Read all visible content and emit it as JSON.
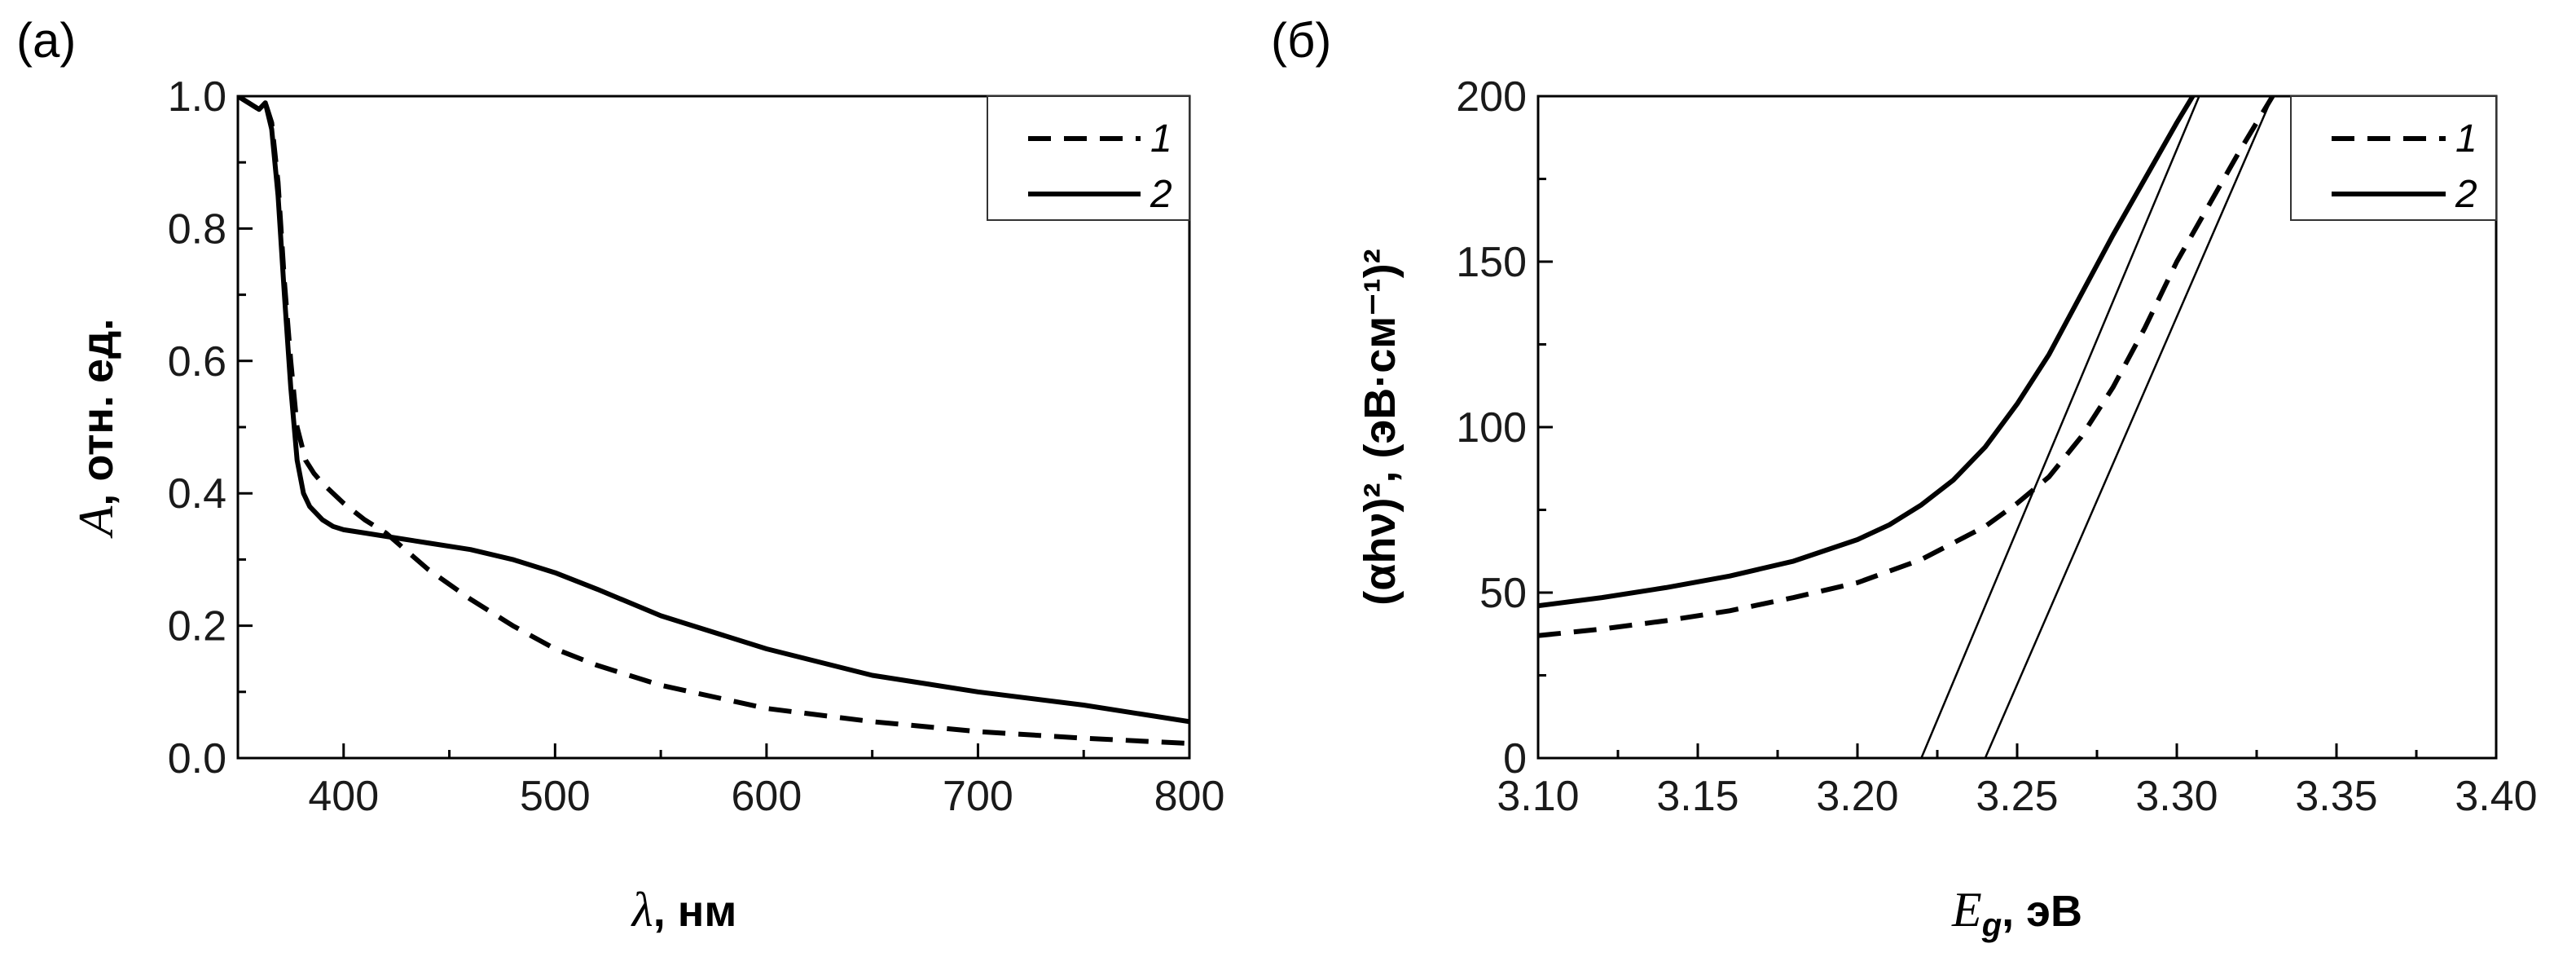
{
  "chart_data": [
    {
      "type": "line",
      "panel_label": "(a)",
      "xlabel_symbol": "λ",
      "xlabel_rest": ", нм",
      "ylabel_symbol": "A",
      "ylabel_rest": ", отн. ед.",
      "xlim": [
        350,
        800
      ],
      "ylim": [
        0,
        1.0
      ],
      "x_ticks": [
        400,
        500,
        600,
        700,
        800
      ],
      "y_ticks": [
        0.0,
        0.2,
        0.4,
        0.6,
        0.8,
        1.0
      ],
      "x_tick_labels": [
        "400",
        "500",
        "600",
        "700",
        "800"
      ],
      "y_tick_labels": [
        "0.0",
        "0.2",
        "0.4",
        "0.6",
        "0.8",
        "1.0"
      ],
      "legend_position": "top-right",
      "series": [
        {
          "name": "1",
          "style": "dashed",
          "x": [
            350,
            355,
            360,
            363,
            366,
            369,
            372,
            375,
            378,
            382,
            386,
            390,
            395,
            400,
            410,
            420,
            440,
            460,
            480,
            500,
            520,
            550,
            600,
            650,
            700,
            750,
            800
          ],
          "y": [
            1.0,
            0.99,
            0.98,
            0.99,
            0.96,
            0.87,
            0.72,
            0.6,
            0.5,
            0.45,
            0.43,
            0.415,
            0.4,
            0.385,
            0.36,
            0.34,
            0.285,
            0.24,
            0.2,
            0.165,
            0.14,
            0.11,
            0.075,
            0.055,
            0.04,
            0.03,
            0.022
          ]
        },
        {
          "name": "2",
          "style": "solid",
          "x": [
            350,
            355,
            360,
            363,
            366,
            369,
            372,
            375,
            378,
            381,
            384,
            387,
            390,
            395,
            400,
            410,
            420,
            440,
            460,
            480,
            500,
            520,
            550,
            600,
            650,
            700,
            750,
            800
          ],
          "y": [
            1.0,
            0.99,
            0.98,
            0.99,
            0.95,
            0.85,
            0.7,
            0.56,
            0.45,
            0.4,
            0.38,
            0.37,
            0.36,
            0.35,
            0.345,
            0.34,
            0.335,
            0.325,
            0.315,
            0.3,
            0.28,
            0.255,
            0.215,
            0.165,
            0.125,
            0.1,
            0.08,
            0.055
          ]
        }
      ]
    },
    {
      "type": "line",
      "panel_label": "(б)",
      "xlabel_symbol": "E",
      "xlabel_sub": "g",
      "xlabel_rest": ", эВ",
      "ylabel": "(αhν)², (эВ·см⁻¹)²",
      "xlim": [
        3.1,
        3.4
      ],
      "ylim": [
        0,
        200
      ],
      "x_ticks": [
        3.1,
        3.15,
        3.2,
        3.25,
        3.3,
        3.35,
        3.4
      ],
      "y_ticks": [
        0,
        50,
        100,
        150,
        200
      ],
      "x_tick_labels": [
        "3.10",
        "3.15",
        "3.20",
        "3.25",
        "3.30",
        "3.35",
        "3.40"
      ],
      "y_tick_labels": [
        "0",
        "50",
        "100",
        "150",
        "200"
      ],
      "legend_position": "top-right",
      "series": [
        {
          "name": "1",
          "style": "dashed",
          "x": [
            3.1,
            3.12,
            3.14,
            3.16,
            3.18,
            3.2,
            3.22,
            3.24,
            3.25,
            3.26,
            3.27,
            3.28,
            3.29,
            3.3,
            3.31,
            3.32,
            3.33
          ],
          "y": [
            37,
            39,
            41.5,
            44.5,
            48.5,
            53,
            60,
            70,
            77,
            85,
            97,
            112,
            130,
            150,
            167,
            184,
            200
          ]
        },
        {
          "name": "2",
          "style": "solid",
          "x": [
            3.1,
            3.12,
            3.14,
            3.16,
            3.18,
            3.2,
            3.21,
            3.22,
            3.23,
            3.24,
            3.25,
            3.26,
            3.27,
            3.28,
            3.29,
            3.3,
            3.305
          ],
          "y": [
            46,
            48.5,
            51.5,
            55,
            59.5,
            66,
            70.5,
            76.5,
            84,
            94,
            107,
            122,
            140,
            158,
            175,
            192,
            200
          ]
        }
      ],
      "fit_lines": [
        {
          "x": [
            3.22,
            3.307
          ],
          "y": [
            0,
            200
          ]
        },
        {
          "x": [
            3.24,
            3.33
          ],
          "y": [
            0,
            200
          ]
        }
      ]
    }
  ]
}
